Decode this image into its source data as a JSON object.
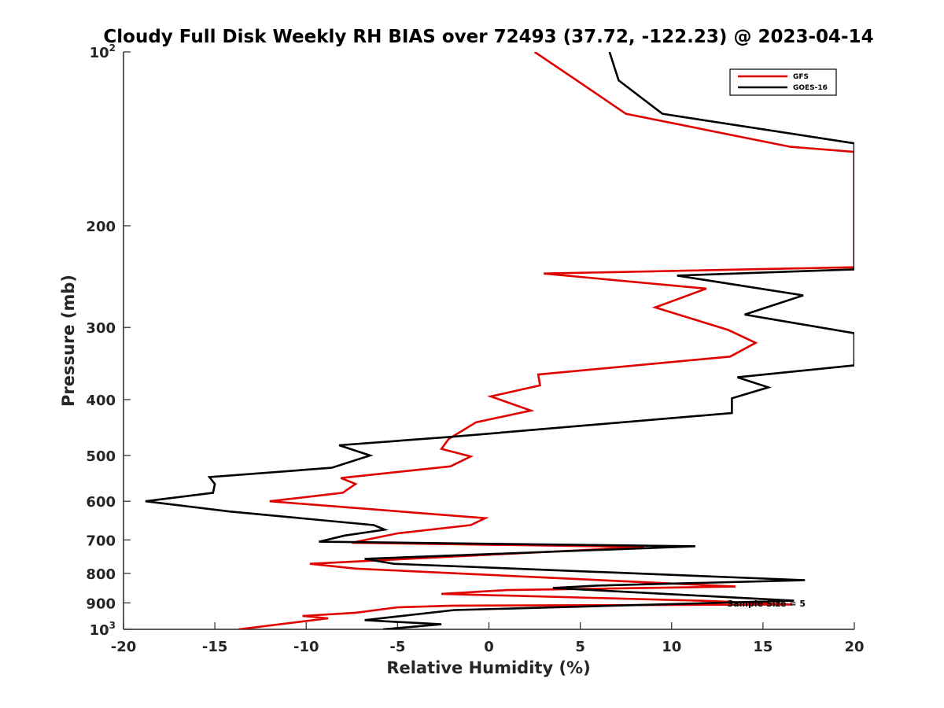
{
  "chart_data": {
    "type": "line",
    "title": "Cloudy Full Disk Weekly RH BIAS over 72493 (37.72, -122.23) @ 2023-04-14",
    "xlabel": "Relative Humidity (%)",
    "ylabel": "Pressure (mb)",
    "xlim": [
      -20,
      20
    ],
    "ylim": [
      100,
      1000
    ],
    "yscale": "log",
    "y_reversed": true,
    "x_ticks": [
      "-20",
      "-15",
      "-10",
      "-5",
      "0",
      "5",
      "10",
      "15",
      "20"
    ],
    "y_ticks": [
      {
        "value": 100,
        "base": "10",
        "exp": "2"
      },
      {
        "value": 200,
        "label": "200"
      },
      {
        "value": 300,
        "label": "300"
      },
      {
        "value": 400,
        "label": "400"
      },
      {
        "value": 500,
        "label": "500"
      },
      {
        "value": 600,
        "label": "600"
      },
      {
        "value": 700,
        "label": "700"
      },
      {
        "value": 800,
        "label": "800"
      },
      {
        "value": 900,
        "label": "900"
      },
      {
        "value": 1000,
        "base": "10",
        "exp": "3"
      }
    ],
    "grid": false,
    "legend_position": "top-right",
    "annotation": "Sample Size = 5",
    "series": [
      {
        "name": "GFS",
        "color": "#e00000",
        "points": [
          [
            2.5,
            100
          ],
          [
            4.8,
            112
          ],
          [
            7.5,
            128
          ],
          [
            16.5,
            146
          ],
          [
            20.0,
            149
          ],
          [
            20.0,
            236
          ],
          [
            3.0,
            242
          ],
          [
            11.9,
            257
          ],
          [
            9.1,
            277
          ],
          [
            13.1,
            303
          ],
          [
            14.6,
            319
          ],
          [
            13.2,
            337
          ],
          [
            2.7,
            362
          ],
          [
            2.8,
            378
          ],
          [
            0.1,
            395
          ],
          [
            2.3,
            418
          ],
          [
            -0.7,
            438
          ],
          [
            -2.2,
            468
          ],
          [
            -2.6,
            487
          ],
          [
            -1.0,
            502
          ],
          [
            -2.1,
            522
          ],
          [
            -8.1,
            547
          ],
          [
            -7.3,
            560
          ],
          [
            -8.0,
            580
          ],
          [
            -12.0,
            600
          ],
          [
            -0.2,
            642
          ],
          [
            -1.0,
            660
          ],
          [
            -5.0,
            682
          ],
          [
            -7.5,
            708
          ],
          [
            8.5,
            720
          ],
          [
            -9.8,
            770
          ],
          [
            -7.3,
            785
          ],
          [
            13.5,
            843
          ],
          [
            1.0,
            855
          ],
          [
            -2.6,
            868
          ],
          [
            12.0,
            893
          ],
          [
            16.6,
            906
          ],
          [
            -2.0,
            910
          ],
          [
            -5.0,
            916
          ],
          [
            -7.3,
            936
          ],
          [
            -10.2,
            948
          ],
          [
            -8.8,
            957
          ],
          [
            -13.7,
            1000
          ]
        ]
      },
      {
        "name": "GOES-16",
        "color": "#000000",
        "points": [
          [
            6.6,
            100
          ],
          [
            7.1,
            112
          ],
          [
            9.5,
            128
          ],
          [
            20.0,
            144
          ],
          [
            20.0,
            238
          ],
          [
            10.3,
            244
          ],
          [
            17.2,
            264
          ],
          [
            14.0,
            285
          ],
          [
            20.0,
            307
          ],
          [
            20.0,
            349
          ],
          [
            13.6,
            366
          ],
          [
            15.3,
            381
          ],
          [
            13.3,
            398
          ],
          [
            13.3,
            422
          ],
          [
            -2.0,
            464
          ],
          [
            -8.2,
            480
          ],
          [
            -6.5,
            500
          ],
          [
            -8.6,
            525
          ],
          [
            -15.3,
            545
          ],
          [
            -15.0,
            560
          ],
          [
            -15.1,
            580
          ],
          [
            -18.8,
            600
          ],
          [
            -14.2,
            625
          ],
          [
            -6.3,
            660
          ],
          [
            -5.7,
            672
          ],
          [
            -7.9,
            688
          ],
          [
            -9.3,
            705
          ],
          [
            11.3,
            718
          ],
          [
            -6.8,
            755
          ],
          [
            -5.2,
            770
          ],
          [
            17.3,
            822
          ],
          [
            5.9,
            840
          ],
          [
            3.5,
            848
          ],
          [
            16.7,
            892
          ],
          [
            -1.9,
            926
          ],
          [
            -6.8,
            964
          ],
          [
            -2.6,
            980
          ],
          [
            -5.8,
            1000
          ]
        ]
      }
    ]
  }
}
